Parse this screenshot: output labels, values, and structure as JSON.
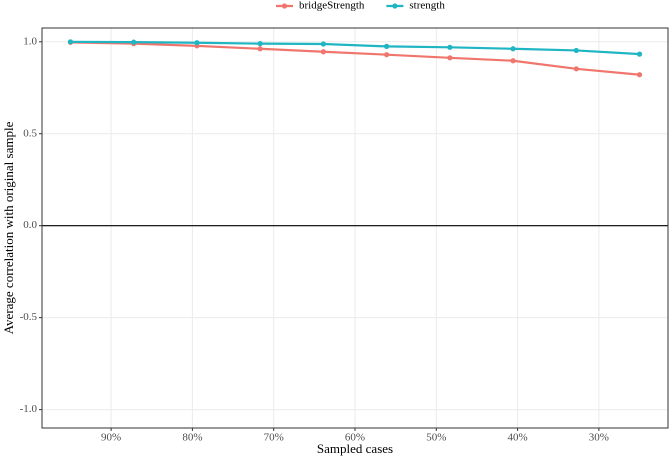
{
  "chart_data": {
    "type": "line",
    "x_label": "Sampled cases",
    "y_label": "Average correlation with original sample",
    "x": [
      95,
      87.22,
      79.44,
      71.67,
      63.89,
      56.11,
      48.33,
      40.56,
      32.78,
      25
    ],
    "series": [
      {
        "name": "bridgeStrength",
        "color": "#F0766D",
        "values": [
          0.997,
          0.99,
          0.978,
          0.962,
          0.946,
          0.93,
          0.913,
          0.897,
          0.853,
          0.821
        ]
      },
      {
        "name": "strength",
        "color": "#1FB5C2",
        "values": [
          1.0,
          0.998,
          0.995,
          0.99,
          0.988,
          0.975,
          0.97,
          0.962,
          0.953,
          0.933
        ]
      }
    ],
    "xlim": [
      98.5,
      21.5
    ],
    "xticks": [
      {
        "value": 90,
        "label": "90%"
      },
      {
        "value": 80,
        "label": "80%"
      },
      {
        "value": 70,
        "label": "70%"
      },
      {
        "value": 60,
        "label": "60%"
      },
      {
        "value": 50,
        "label": "50%"
      },
      {
        "value": 40,
        "label": "40%"
      },
      {
        "value": 30,
        "label": "30%"
      }
    ],
    "ylim": [
      -1.1,
      1.075
    ],
    "yticks": [
      {
        "value": -1,
        "label": "-1.0"
      },
      -0.5,
      {
        "value": 0,
        "label": "0.0"
      },
      0.5,
      {
        "value": 1,
        "label": "1.0"
      }
    ],
    "hline": 0,
    "grid": true,
    "legend": "top"
  }
}
